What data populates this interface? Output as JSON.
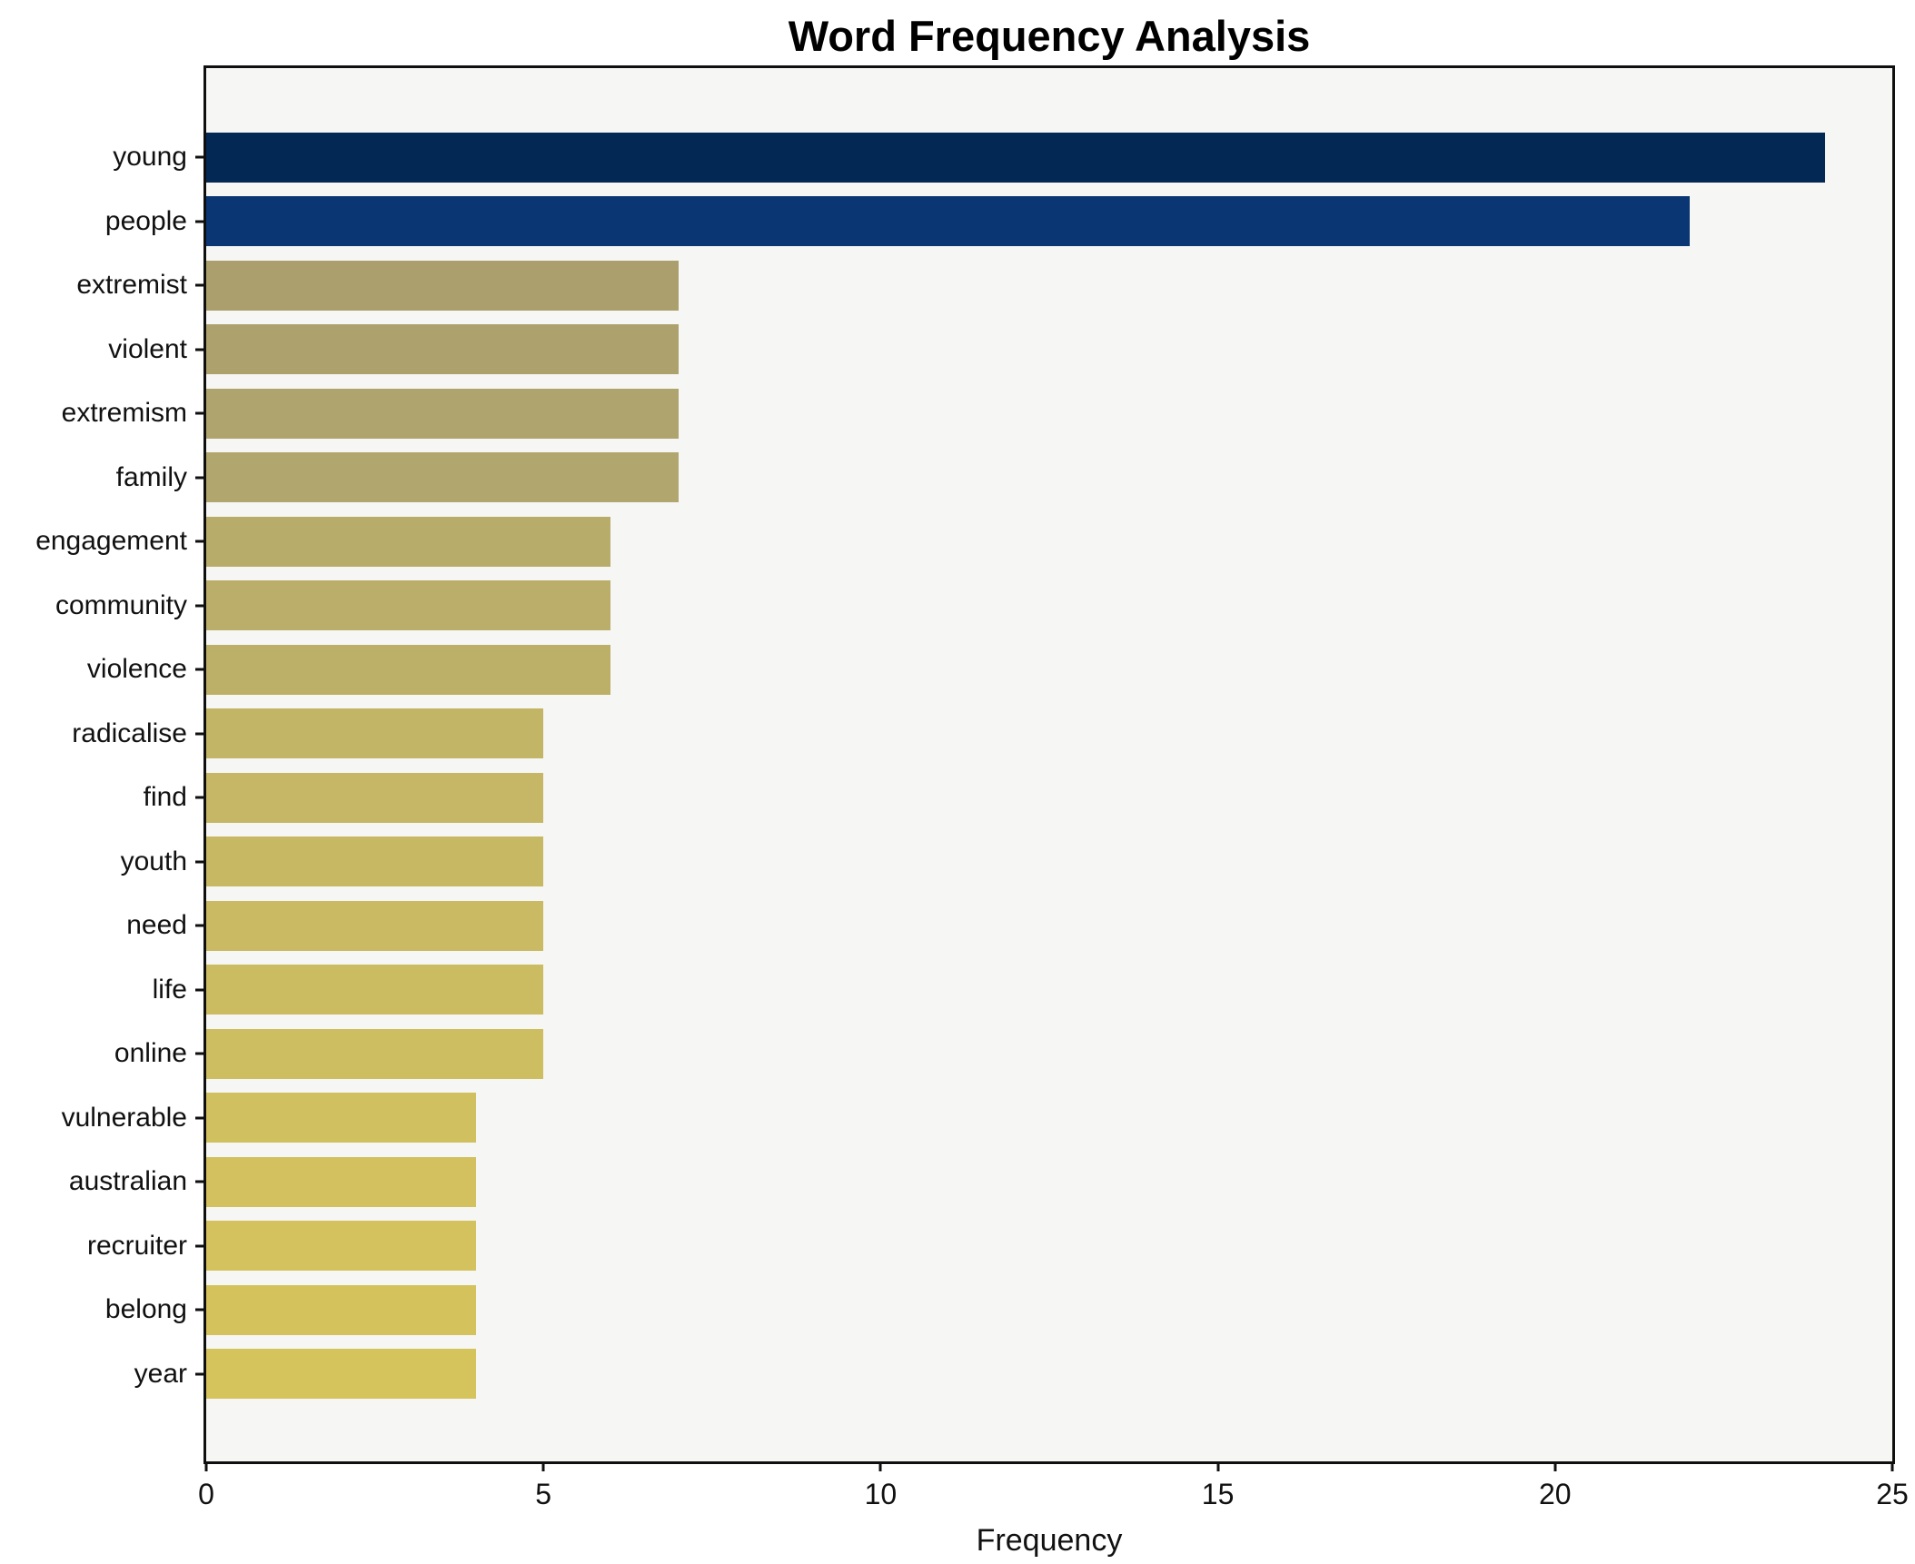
{
  "chart_data": {
    "type": "bar",
    "orientation": "horizontal",
    "title": "Word Frequency Analysis",
    "xlabel": "Frequency",
    "ylabel": "",
    "xlim": [
      0,
      25
    ],
    "xticks": [
      0,
      5,
      10,
      15,
      20,
      25
    ],
    "grid": false,
    "legend": "none",
    "plot_background": "#f6f6f4",
    "spine_color": "#0f0f0f",
    "categories": [
      "young",
      "people",
      "extremist",
      "violent",
      "extremism",
      "family",
      "engagement",
      "community",
      "violence",
      "radicalise",
      "find",
      "youth",
      "need",
      "life",
      "online",
      "vulnerable",
      "australian",
      "recruiter",
      "belong",
      "year"
    ],
    "values": [
      24,
      22,
      7,
      7,
      7,
      7,
      6,
      6,
      6,
      5,
      5,
      5,
      5,
      5,
      5,
      4,
      4,
      4,
      4,
      4
    ],
    "bar_colors": [
      "#032853",
      "#0a3673",
      "#aba06d",
      "#ada26e",
      "#afa46e",
      "#b1a66e",
      "#b8ac6b",
      "#baae6a",
      "#bcb069",
      "#c3b566",
      "#c5b765",
      "#c7b964",
      "#c9ba63",
      "#cbbc62",
      "#cdbe61",
      "#d1c05f",
      "#d2c15e",
      "#d3c25e",
      "#d4c35d",
      "#d5c35c"
    ]
  }
}
